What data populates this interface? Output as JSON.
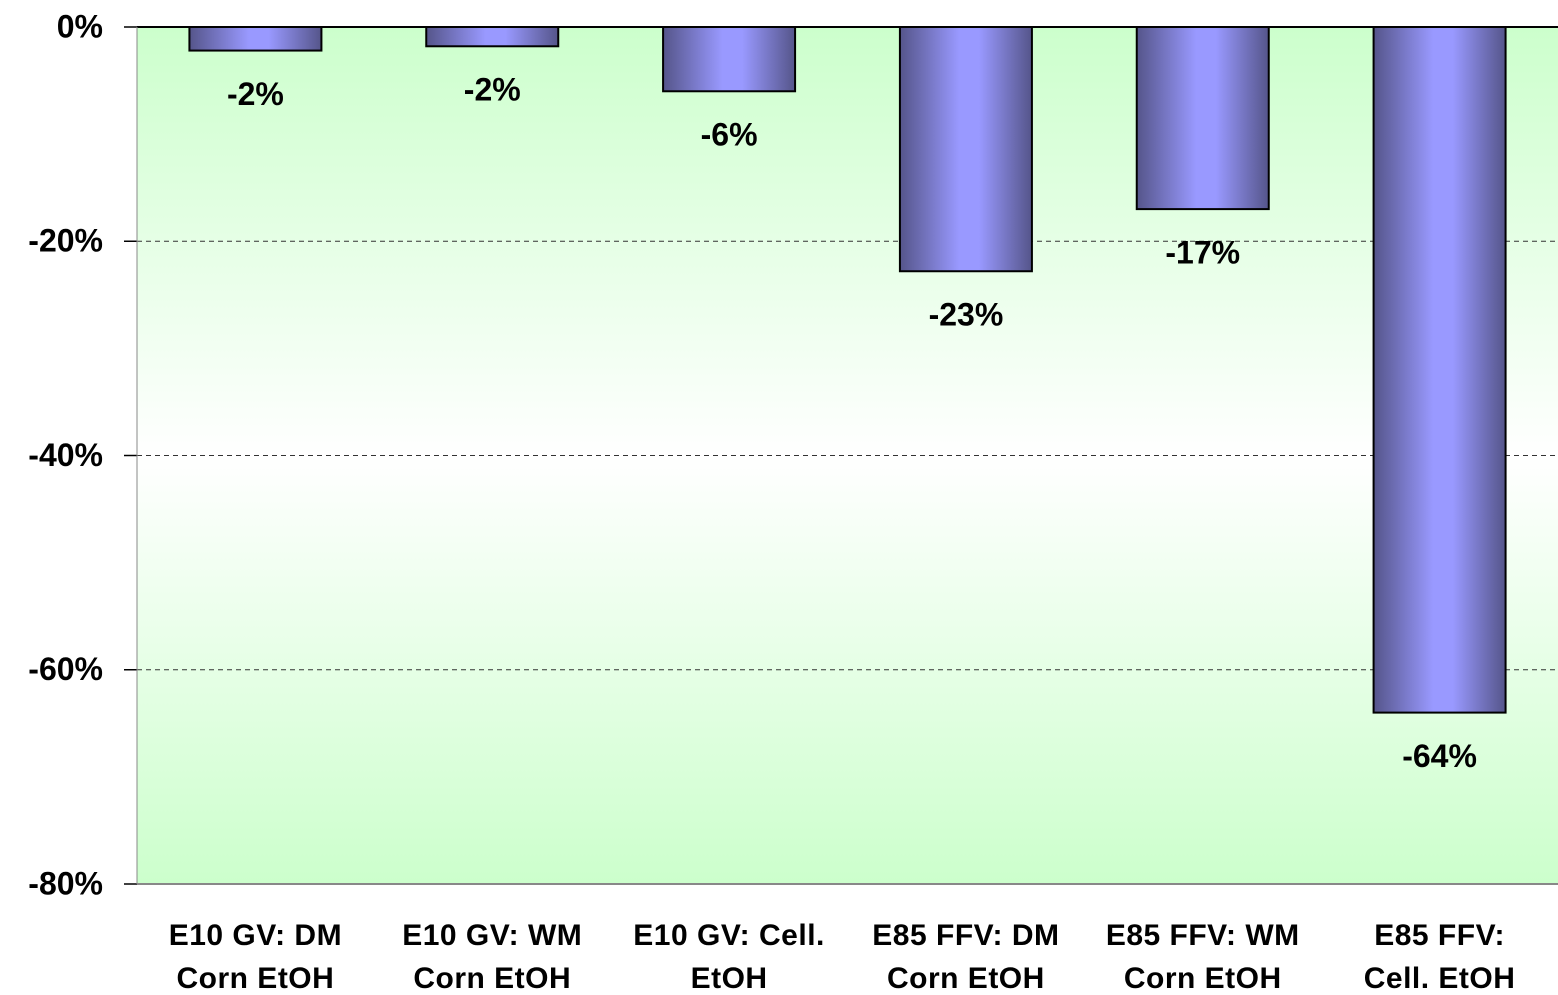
{
  "chart_data": {
    "type": "bar",
    "categories": [
      "E10 GV: DM\nCorn EtOH",
      "E10 GV: WM\nCorn EtOH",
      "E10 GV: Cell.\nEtOH",
      "E85 FFV: DM\nCorn EtOH",
      "E85 FFV: WM\nCorn EtOH",
      "E85 FFV:\nCell. EtOH"
    ],
    "values": [
      -2.2,
      -1.8,
      -6,
      -22.8,
      -17,
      -64
    ],
    "value_labels": [
      "-2%",
      "-2%",
      "-6%",
      "-23%",
      "-17%",
      "-64%"
    ],
    "color": "#9999ff",
    "ylim": [
      -80,
      0
    ],
    "yticks": [
      {
        "value": 0,
        "label": "0%"
      },
      {
        "value": -20,
        "label": "-20%"
      },
      {
        "value": -40,
        "label": "-40%"
      },
      {
        "value": -60,
        "label": "-60%"
      },
      {
        "value": -80,
        "label": "-80%"
      }
    ],
    "grid": true
  }
}
